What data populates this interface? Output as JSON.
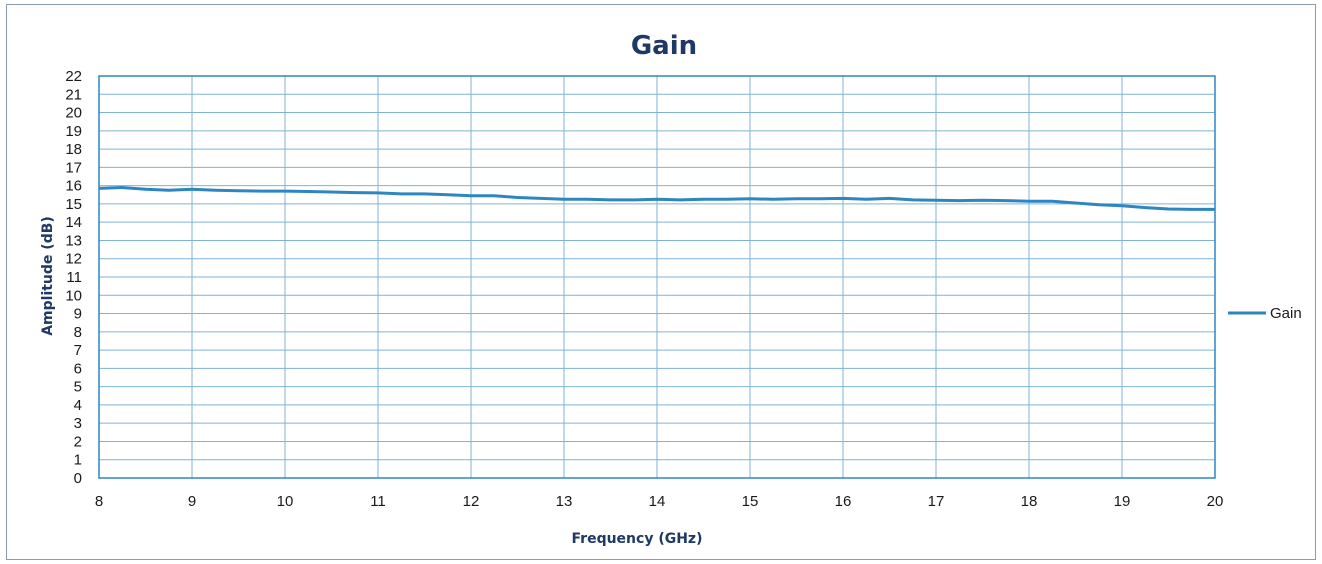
{
  "chart_data": {
    "type": "line",
    "title": "Gain",
    "xlabel": "Frequency (GHz)",
    "ylabel": "Amplitude (dB)",
    "xlim": [
      8,
      20
    ],
    "ylim": [
      0,
      22
    ],
    "x_ticks": [
      8,
      9,
      10,
      11,
      12,
      13,
      14,
      15,
      16,
      17,
      18,
      19,
      20
    ],
    "y_ticks": [
      0,
      1,
      2,
      3,
      4,
      5,
      6,
      7,
      8,
      9,
      10,
      11,
      12,
      13,
      14,
      15,
      16,
      17,
      18,
      19,
      20,
      21,
      22
    ],
    "grid": true,
    "legend_position": "right",
    "colors": {
      "series": "#2e86c1",
      "grid": "#7fb3d5",
      "axes": "#2e86c1"
    },
    "series": [
      {
        "name": "Gain",
        "x": [
          8.0,
          8.25,
          8.5,
          8.75,
          9.0,
          9.25,
          9.5,
          9.75,
          10.0,
          10.25,
          10.5,
          10.75,
          11.0,
          11.25,
          11.5,
          11.75,
          12.0,
          12.25,
          12.5,
          12.75,
          13.0,
          13.25,
          13.5,
          13.75,
          14.0,
          14.25,
          14.5,
          14.75,
          15.0,
          15.25,
          15.5,
          15.75,
          16.0,
          16.25,
          16.5,
          16.75,
          17.0,
          17.25,
          17.5,
          17.75,
          18.0,
          18.25,
          18.5,
          18.75,
          19.0,
          19.25,
          19.5,
          19.75,
          20.0
        ],
        "values": [
          15.85,
          15.9,
          15.8,
          15.75,
          15.8,
          15.75,
          15.72,
          15.7,
          15.7,
          15.68,
          15.65,
          15.62,
          15.6,
          15.55,
          15.55,
          15.5,
          15.45,
          15.45,
          15.35,
          15.3,
          15.25,
          15.25,
          15.22,
          15.22,
          15.25,
          15.22,
          15.25,
          15.25,
          15.28,
          15.25,
          15.28,
          15.28,
          15.3,
          15.25,
          15.3,
          15.22,
          15.2,
          15.18,
          15.2,
          15.18,
          15.15,
          15.15,
          15.05,
          14.95,
          14.9,
          14.8,
          14.72,
          14.7,
          14.7
        ]
      }
    ]
  }
}
